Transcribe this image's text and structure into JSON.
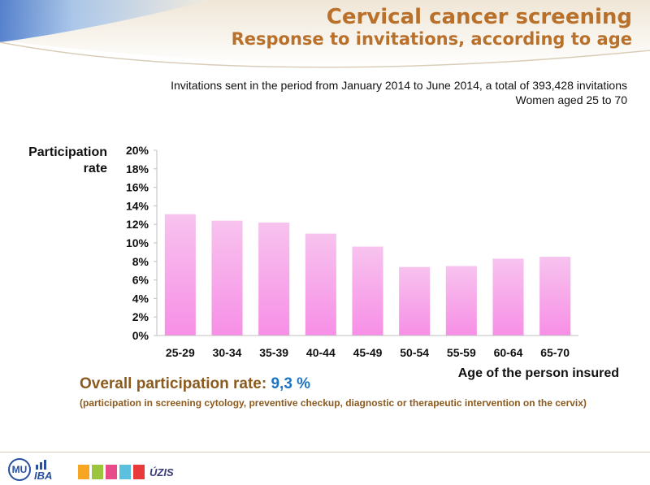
{
  "header": {
    "title": "Cervical cancer screening",
    "subtitle": "Response to invitations, according to age"
  },
  "notes": {
    "line1": "Invitations sent in the period from January 2014 to June 2014, a total of 393,428 invitations",
    "line2": "Women aged 25 to 70"
  },
  "chart_data": {
    "type": "bar",
    "ylabel": "Participation rate",
    "xlabel": "Age of the person insured",
    "categories": [
      "25-29",
      "30-34",
      "35-39",
      "40-44",
      "45-49",
      "50-54",
      "55-59",
      "60-64",
      "65-70"
    ],
    "values": [
      13.1,
      12.4,
      12.2,
      11.0,
      9.6,
      7.4,
      7.5,
      8.3,
      8.5
    ],
    "value_unit": "%",
    "ylim": [
      0,
      20
    ],
    "yticks": [
      "0%",
      "2%",
      "4%",
      "6%",
      "8%",
      "10%",
      "12%",
      "14%",
      "16%",
      "18%",
      "20%"
    ],
    "grid": false,
    "bar_color_top": "#f7c3ee",
    "bar_color_bottom": "#f78fe6"
  },
  "summary": {
    "overall_label": "Overall participation rate:",
    "overall_value": "9,3 %",
    "overall_note": "(participation in screening cytology, preventive checkup, diagnostic or therapeutic intervention on the cervix)"
  },
  "footer": {
    "logo_mu": "MU",
    "logo_iba": "IBA",
    "logo_uzis": "ÚZIS"
  },
  "colors": {
    "title": "#b8702a",
    "accent_blue": "#1f74c2",
    "summary_brown": "#8b5a1e"
  }
}
